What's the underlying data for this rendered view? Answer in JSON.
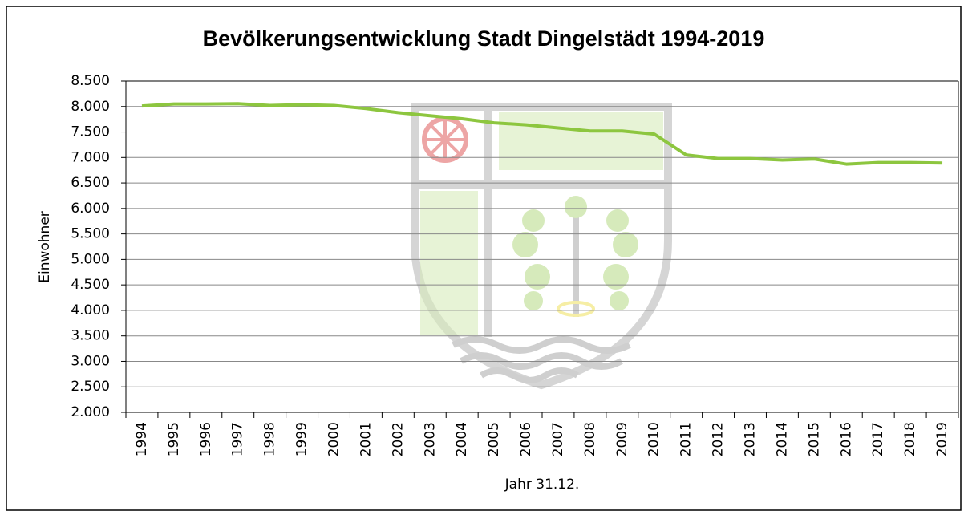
{
  "chart_data": {
    "type": "line",
    "title": "Bevölkerungsentwicklung Stadt Dingelstädt 1994-2019",
    "x_label": "Jahr 31.12.",
    "y_label": "Einwohner",
    "categories": [
      "1994",
      "1995",
      "1996",
      "1997",
      "1998",
      "1999",
      "2000",
      "2001",
      "2002",
      "2003",
      "2004",
      "2005",
      "2006",
      "2007",
      "2008",
      "2009",
      "2010",
      "2011",
      "2012",
      "2013",
      "2014",
      "2015",
      "2016",
      "2017",
      "2018",
      "2019"
    ],
    "series": [
      {
        "name": "Einwohner",
        "color": "#8dc63f",
        "values": [
          8010,
          8050,
          8050,
          8055,
          8020,
          8035,
          8020,
          7960,
          7880,
          7820,
          7760,
          7680,
          7640,
          7580,
          7520,
          7520,
          7460,
          7050,
          6980,
          6980,
          6950,
          6970,
          6870,
          6900,
          6900,
          6890
        ]
      }
    ],
    "ylim": [
      2000,
      8500
    ],
    "yticks": [
      {
        "value": 2000,
        "label": "2.000"
      },
      {
        "value": 2500,
        "label": "2.500"
      },
      {
        "value": 3000,
        "label": "3.000"
      },
      {
        "value": 3500,
        "label": "3.500"
      },
      {
        "value": 4000,
        "label": "4.000"
      },
      {
        "value": 4500,
        "label": "4.500"
      },
      {
        "value": 5000,
        "label": "5.000"
      },
      {
        "value": 5500,
        "label": "5.500"
      },
      {
        "value": 6000,
        "label": "6.000"
      },
      {
        "value": 6500,
        "label": "6.500"
      },
      {
        "value": 7000,
        "label": "7.000"
      },
      {
        "value": 7500,
        "label": "7.500"
      },
      {
        "value": 8000,
        "label": "8.000"
      },
      {
        "value": 8500,
        "label": "8.500"
      }
    ],
    "grid": true
  }
}
